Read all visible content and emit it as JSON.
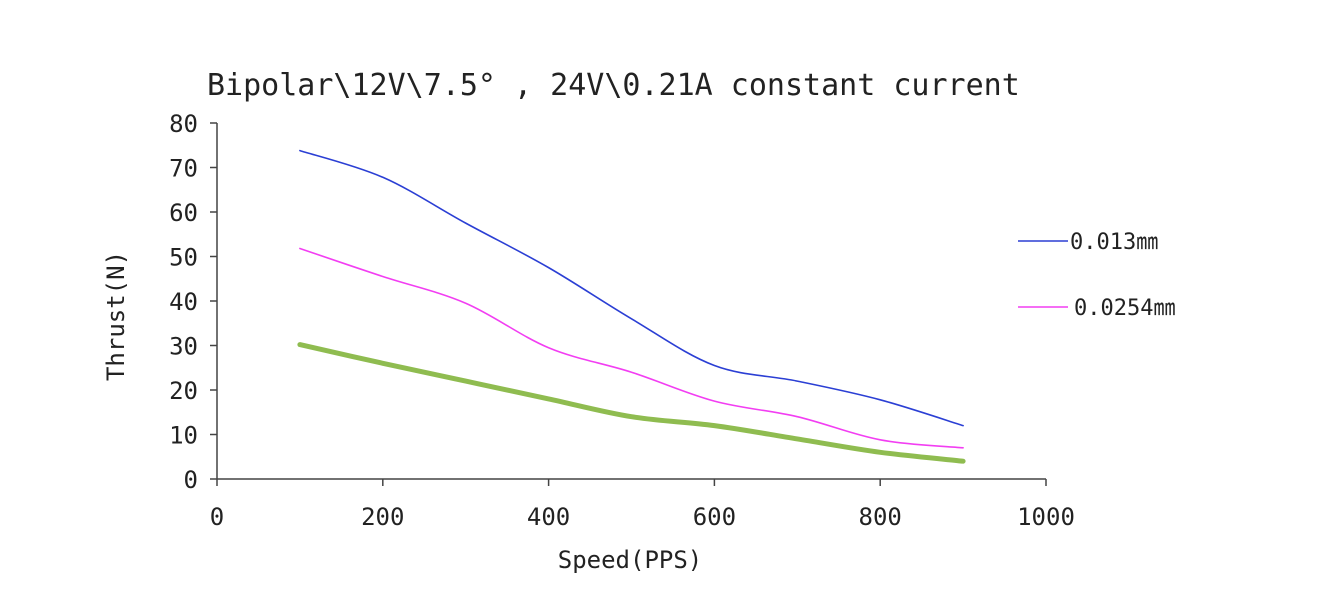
{
  "chart_data": {
    "type": "line",
    "title": "Bipolar\\12V\\7.5° , 24V\\0.21A constant current",
    "xlabel": "Speed(PPS)",
    "ylabel": "Thrust(N)",
    "xlim": [
      0,
      1000
    ],
    "ylim": [
      0,
      80
    ],
    "xticks": [
      0,
      200,
      400,
      600,
      800,
      1000
    ],
    "yticks": [
      0,
      10,
      20,
      30,
      40,
      50,
      60,
      70,
      80
    ],
    "grid": false,
    "legend_position": "right",
    "x": [
      100,
      200,
      300,
      400,
      500,
      600,
      700,
      800,
      900
    ],
    "series": [
      {
        "name": "0.013㎜",
        "color": "#2b3fd4",
        "width": 1.6,
        "values": [
          73.8,
          67.8,
          57.5,
          47.5,
          36.0,
          25.5,
          22.0,
          17.8,
          12.0
        ]
      },
      {
        "name": "0.0254㎜",
        "color": "#f23ef2",
        "width": 1.6,
        "values": [
          51.8,
          45.5,
          39.5,
          29.5,
          24.0,
          17.5,
          14.0,
          8.8,
          7.0
        ]
      },
      {
        "name": "",
        "color": "#8fbc50",
        "width": 5,
        "values": [
          30.2,
          26.0,
          22.0,
          18.0,
          14.0,
          12.0,
          9.0,
          6.0,
          4.0
        ]
      }
    ]
  }
}
